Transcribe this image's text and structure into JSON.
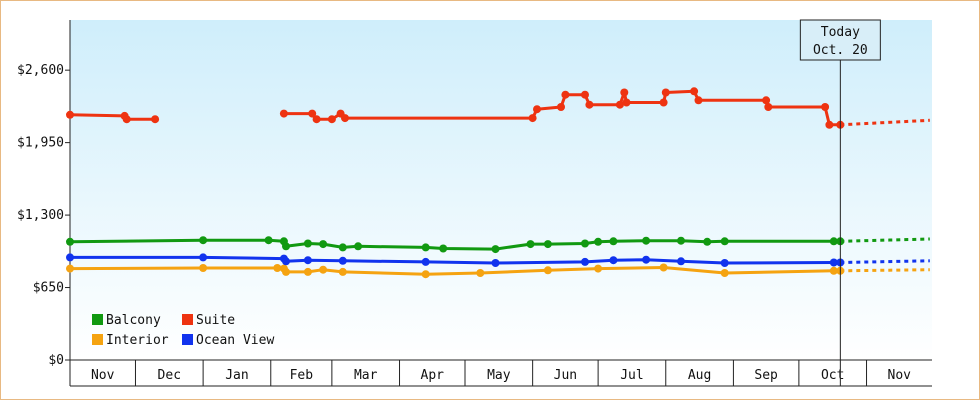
{
  "chart_data": {
    "type": "line",
    "title": "",
    "xlabel": "",
    "ylabel": "",
    "x_tick_labels": [
      "Nov",
      "Dec",
      "Jan",
      "Feb",
      "Mar",
      "Apr",
      "May",
      "Jun",
      "Jul",
      "Aug",
      "Sep",
      "Oct",
      "Nov"
    ],
    "y_ticks": [
      0,
      650,
      1300,
      1950,
      2600
    ],
    "y_tick_labels": [
      "$0",
      "$650",
      "$1,300",
      "$1,950",
      "$2,600"
    ],
    "ylim": [
      0,
      3050
    ],
    "xlim": [
      "2009-11-01",
      "2010-11-30"
    ],
    "grid": false,
    "legend_position": "bottom-left",
    "today_marker": {
      "line1": "Today",
      "line2": "Oct. 20",
      "date": "2010-10-20"
    },
    "series": [
      {
        "name": "Balcony",
        "color": "#119911",
        "points": [
          [
            "2009-11-01",
            1060
          ],
          [
            "2010-01-01",
            1075
          ],
          [
            "2010-01-31",
            1075
          ],
          [
            "2010-02-07",
            1065
          ],
          [
            "2010-02-08",
            1020
          ],
          [
            "2010-02-18",
            1045
          ],
          [
            "2010-02-25",
            1040
          ],
          [
            "2010-03-06",
            1010
          ],
          [
            "2010-03-13",
            1020
          ],
          [
            "2010-04-13",
            1010
          ],
          [
            "2010-04-21",
            1000
          ],
          [
            "2010-05-15",
            995
          ],
          [
            "2010-05-31",
            1040
          ],
          [
            "2010-06-08",
            1040
          ],
          [
            "2010-06-25",
            1045
          ],
          [
            "2010-07-01",
            1060
          ],
          [
            "2010-07-08",
            1065
          ],
          [
            "2010-07-23",
            1070
          ],
          [
            "2010-08-08",
            1070
          ],
          [
            "2010-08-20",
            1060
          ],
          [
            "2010-08-28",
            1065
          ],
          [
            "2010-10-17",
            1065
          ],
          [
            "2010-10-20",
            1065
          ]
        ],
        "projection": [
          [
            "2010-10-20",
            1065
          ],
          [
            "2010-11-30",
            1085
          ]
        ]
      },
      {
        "name": "Suite",
        "color": "#ee3311",
        "segments": [
          [
            [
              "2009-11-01",
              2200
            ],
            [
              "2009-11-26",
              2190
            ],
            [
              "2009-11-27",
              2160
            ],
            [
              "2009-12-10",
              2160
            ]
          ],
          [
            [
              "2010-02-07",
              2210
            ],
            [
              "2010-02-20",
              2210
            ],
            [
              "2010-02-22",
              2160
            ],
            [
              "2010-03-01",
              2160
            ],
            [
              "2010-03-05",
              2210
            ],
            [
              "2010-03-07",
              2170
            ],
            [
              "2010-06-01",
              2170
            ],
            [
              "2010-06-03",
              2250
            ],
            [
              "2010-06-14",
              2270
            ],
            [
              "2010-06-16",
              2380
            ],
            [
              "2010-06-25",
              2380
            ],
            [
              "2010-06-27",
              2290
            ],
            [
              "2010-07-11",
              2290
            ],
            [
              "2010-07-13",
              2400
            ],
            [
              "2010-07-14",
              2310
            ],
            [
              "2010-07-31",
              2310
            ],
            [
              "2010-08-01",
              2400
            ],
            [
              "2010-08-14",
              2410
            ],
            [
              "2010-08-16",
              2330
            ],
            [
              "2010-09-16",
              2330
            ],
            [
              "2010-09-17",
              2270
            ],
            [
              "2010-10-13",
              2270
            ],
            [
              "2010-10-15",
              2110
            ],
            [
              "2010-10-20",
              2110
            ]
          ]
        ],
        "projection": [
          [
            "2010-10-20",
            2110
          ],
          [
            "2010-11-30",
            2150
          ]
        ]
      },
      {
        "name": "Interior",
        "color": "#f5a311",
        "points": [
          [
            "2009-11-01",
            820
          ],
          [
            "2010-01-01",
            825
          ],
          [
            "2010-02-04",
            825
          ],
          [
            "2010-02-07",
            820
          ],
          [
            "2010-02-08",
            790
          ],
          [
            "2010-02-18",
            790
          ],
          [
            "2010-02-25",
            810
          ],
          [
            "2010-03-06",
            790
          ],
          [
            "2010-04-13",
            770
          ],
          [
            "2010-05-08",
            780
          ],
          [
            "2010-06-08",
            805
          ],
          [
            "2010-07-01",
            820
          ],
          [
            "2010-07-31",
            830
          ],
          [
            "2010-08-28",
            780
          ],
          [
            "2010-10-17",
            800
          ],
          [
            "2010-10-20",
            800
          ]
        ],
        "projection": [
          [
            "2010-10-20",
            800
          ],
          [
            "2010-11-30",
            810
          ]
        ]
      },
      {
        "name": "Ocean View",
        "color": "#1133ee",
        "points": [
          [
            "2009-11-01",
            920
          ],
          [
            "2010-01-01",
            920
          ],
          [
            "2010-02-07",
            910
          ],
          [
            "2010-02-08",
            885
          ],
          [
            "2010-02-18",
            895
          ],
          [
            "2010-03-06",
            890
          ],
          [
            "2010-04-13",
            880
          ],
          [
            "2010-05-15",
            870
          ],
          [
            "2010-06-25",
            880
          ],
          [
            "2010-07-08",
            895
          ],
          [
            "2010-07-23",
            900
          ],
          [
            "2010-08-08",
            885
          ],
          [
            "2010-08-28",
            870
          ],
          [
            "2010-10-17",
            875
          ],
          [
            "2010-10-20",
            875
          ]
        ],
        "projection": [
          [
            "2010-10-20",
            875
          ],
          [
            "2010-11-30",
            890
          ]
        ]
      }
    ]
  }
}
